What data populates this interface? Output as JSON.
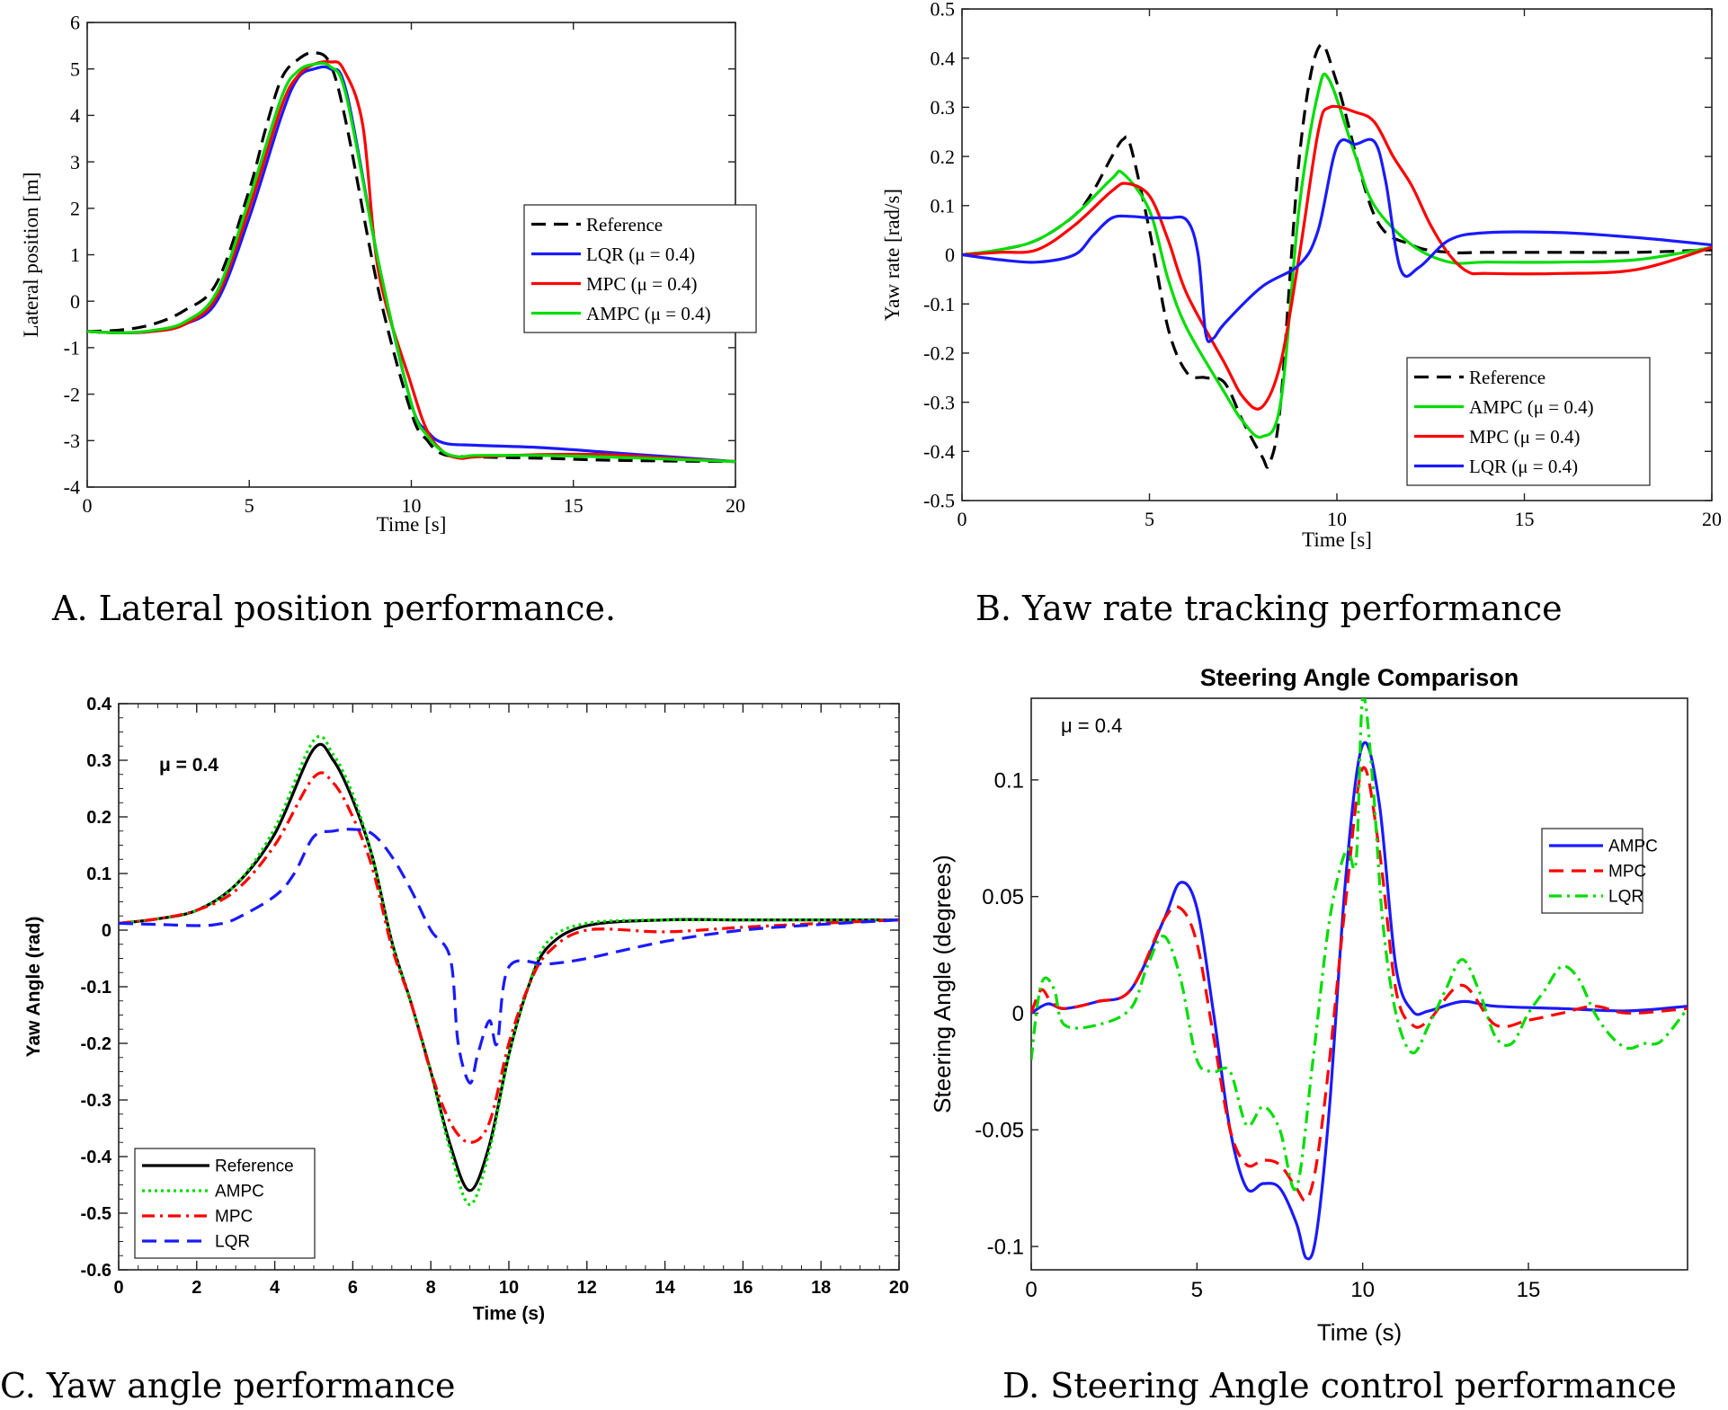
{
  "captions": {
    "a": "A.   Lateral position performance.",
    "b": "B. Yaw rate tracking performance",
    "c": "C. Yaw angle performance",
    "d": "D. Steering Angle control performance"
  },
  "colors": {
    "reference": "#000000",
    "lqr": "#1a1aff",
    "mpc": "#ff0000",
    "ampc": "#00dd00"
  },
  "chart_data": [
    {
      "type": "line",
      "title": "",
      "xlabel": "Time [s]",
      "ylabel": "Lateral position [m]",
      "xlim": [
        0,
        20
      ],
      "ylim": [
        -4,
        6
      ],
      "xticks": [
        0,
        5,
        10,
        15,
        20
      ],
      "yticks": [
        -4,
        -3,
        -2,
        -1,
        0,
        1,
        2,
        3,
        4,
        5,
        6
      ],
      "grid": false,
      "legend_position": "center-right",
      "series": [
        {
          "name": "Reference",
          "color": "#000000",
          "dash": "dashed",
          "x": [
            0,
            1,
            2,
            3,
            4,
            5,
            5.5,
            6,
            6.5,
            7,
            7.5,
            8,
            9,
            10,
            10.5,
            11,
            12,
            14,
            16,
            18,
            20
          ],
          "y": [
            -0.65,
            -0.62,
            -0.5,
            -0.2,
            0.4,
            2.4,
            3.7,
            4.8,
            5.2,
            5.35,
            5.1,
            3.8,
            0.2,
            -2.4,
            -3.0,
            -3.3,
            -3.35,
            -3.38,
            -3.42,
            -3.44,
            -3.45
          ]
        },
        {
          "name": "LQR (μ = 0.4)",
          "color": "#1a1aff",
          "dash": "solid",
          "x": [
            0,
            1,
            2,
            3,
            4,
            5,
            6,
            6.5,
            7,
            7.5,
            8,
            9,
            10,
            10.5,
            11,
            12,
            14,
            16,
            18,
            20
          ],
          "y": [
            -0.65,
            -0.68,
            -0.65,
            -0.5,
            0.0,
            1.8,
            4.0,
            4.8,
            5.0,
            5.0,
            4.5,
            0.8,
            -2.2,
            -2.8,
            -3.05,
            -3.1,
            -3.15,
            -3.25,
            -3.35,
            -3.45
          ]
        },
        {
          "name": "MPC (μ = 0.4)",
          "color": "#ff0000",
          "dash": "solid",
          "x": [
            0,
            1,
            2,
            3,
            4,
            5,
            6,
            6.5,
            7,
            7.5,
            7.9,
            8.5,
            9,
            10,
            10.5,
            11,
            11.5,
            12,
            14,
            16,
            18,
            20
          ],
          "y": [
            -0.65,
            -0.68,
            -0.65,
            -0.5,
            0.1,
            2.0,
            4.2,
            4.85,
            5.1,
            5.15,
            5.0,
            3.8,
            0.6,
            -1.8,
            -2.8,
            -3.25,
            -3.38,
            -3.35,
            -3.3,
            -3.3,
            -3.38,
            -3.45
          ]
        },
        {
          "name": "AMPC (μ = 0.4)",
          "color": "#00dd00",
          "dash": "solid",
          "x": [
            0,
            1,
            2,
            3,
            4,
            5,
            6,
            6.5,
            7,
            7.5,
            8,
            9,
            10,
            10.5,
            11,
            11.5,
            12,
            14,
            16,
            18,
            20
          ],
          "y": [
            -0.65,
            -0.68,
            -0.63,
            -0.45,
            0.2,
            2.2,
            4.4,
            4.95,
            5.1,
            5.05,
            4.4,
            0.8,
            -2.2,
            -2.9,
            -3.25,
            -3.35,
            -3.32,
            -3.32,
            -3.35,
            -3.4,
            -3.45
          ]
        }
      ]
    },
    {
      "type": "line",
      "title": "",
      "xlabel": "Time [s]",
      "ylabel": "Yaw rate [rad/s]",
      "xlim": [
        0,
        20
      ],
      "ylim": [
        -0.5,
        0.5
      ],
      "xticks": [
        0,
        5,
        10,
        15,
        20
      ],
      "yticks": [
        -0.5,
        -0.4,
        -0.3,
        -0.2,
        -0.1,
        0,
        0.1,
        0.2,
        0.3,
        0.4,
        0.5
      ],
      "grid": false,
      "legend_position": "bottom-right",
      "series": [
        {
          "name": "Reference",
          "color": "#000000",
          "dash": "dashed",
          "x": [
            0,
            1,
            2,
            3,
            3.5,
            4,
            4.3,
            4.5,
            5,
            5.5,
            6,
            6.5,
            7,
            7.5,
            8,
            8.2,
            8.5,
            9,
            9.5,
            10,
            11,
            12,
            13,
            14,
            16,
            18,
            20
          ],
          "y": [
            0,
            0.01,
            0.03,
            0.08,
            0.13,
            0.2,
            0.235,
            0.22,
            0.05,
            -0.15,
            -0.24,
            -0.25,
            -0.26,
            -0.34,
            -0.41,
            -0.425,
            -0.3,
            0.2,
            0.42,
            0.35,
            0.08,
            0.02,
            0.005,
            0.005,
            0.005,
            0.005,
            0.01
          ]
        },
        {
          "name": "AMPC (μ = 0.4)",
          "color": "#00dd00",
          "dash": "solid",
          "x": [
            0,
            1,
            2,
            3,
            4,
            4.3,
            5,
            5.5,
            6,
            7,
            7.5,
            8,
            8.5,
            9,
            9.5,
            9.8,
            10.5,
            11,
            12,
            13,
            14,
            16,
            18,
            20
          ],
          "y": [
            0,
            0.01,
            0.03,
            0.08,
            0.155,
            0.165,
            0.09,
            -0.05,
            -0.15,
            -0.28,
            -0.34,
            -0.37,
            -0.3,
            0.1,
            0.33,
            0.355,
            0.2,
            0.1,
            0.02,
            -0.015,
            -0.015,
            -0.015,
            -0.01,
            0.015
          ]
        },
        {
          "name": "MPC (μ = 0.4)",
          "color": "#ff0000",
          "dash": "solid",
          "x": [
            0,
            1,
            2,
            3,
            4,
            4.4,
            5,
            5.5,
            6,
            7,
            7.5,
            8,
            8.5,
            9,
            9.5,
            9.8,
            10.5,
            11,
            11.5,
            12,
            12.5,
            13,
            13.5,
            14,
            16,
            18,
            20
          ],
          "y": [
            0,
            0.005,
            0.01,
            0.06,
            0.13,
            0.145,
            0.12,
            0.03,
            -0.08,
            -0.22,
            -0.29,
            -0.31,
            -0.22,
            0.0,
            0.25,
            0.3,
            0.29,
            0.27,
            0.2,
            0.14,
            0.06,
            0.0,
            -0.035,
            -0.038,
            -0.038,
            -0.03,
            0.015
          ]
        },
        {
          "name": "LQR (μ = 0.4)",
          "color": "#1a1aff",
          "dash": "solid",
          "x": [
            0,
            1,
            2,
            3,
            3.5,
            4,
            4.5,
            5,
            5.5,
            6,
            6.3,
            6.5,
            6.7,
            7,
            8,
            9,
            9.5,
            10,
            10.5,
            11,
            11.3,
            11.7,
            12.2,
            13,
            14,
            16,
            18,
            20
          ],
          "y": [
            0,
            -0.01,
            -0.015,
            0.0,
            0.04,
            0.075,
            0.078,
            0.075,
            0.075,
            0.07,
            0.0,
            -0.16,
            -0.17,
            -0.14,
            -0.065,
            -0.02,
            0.05,
            0.22,
            0.225,
            0.23,
            0.15,
            -0.03,
            -0.025,
            0.03,
            0.045,
            0.045,
            0.035,
            0.02
          ]
        }
      ]
    },
    {
      "type": "line",
      "title": "",
      "xlabel": "Time (s)",
      "ylabel": "Yaw Angle (rad)",
      "annotation": "μ = 0.4",
      "xlim": [
        0,
        20
      ],
      "ylim": [
        -0.6,
        0.4
      ],
      "xticks": [
        0,
        2,
        4,
        6,
        8,
        10,
        12,
        14,
        16,
        18,
        20
      ],
      "yticks": [
        -0.6,
        -0.5,
        -0.4,
        -0.3,
        -0.2,
        -0.1,
        0,
        0.1,
        0.2,
        0.3,
        0.4
      ],
      "grid": false,
      "legend_position": "bottom-left",
      "series": [
        {
          "name": "Reference",
          "color": "#000000",
          "dash": "solid",
          "x": [
            0,
            1,
            2,
            3,
            4,
            5,
            5.5,
            6,
            6.5,
            7,
            7.5,
            8,
            8.5,
            9,
            9.5,
            10,
            10.5,
            11,
            12,
            14,
            16,
            18,
            20
          ],
          "y": [
            0.012,
            0.02,
            0.035,
            0.08,
            0.17,
            0.32,
            0.3,
            0.23,
            0.13,
            -0.02,
            -0.13,
            -0.25,
            -0.38,
            -0.46,
            -0.38,
            -0.22,
            -0.1,
            -0.03,
            0.008,
            0.018,
            0.018,
            0.018,
            0.018
          ]
        },
        {
          "name": "AMPC",
          "color": "#00dd00",
          "dash": "dotted",
          "x": [
            0,
            1,
            2,
            3,
            4,
            5,
            5.5,
            6,
            6.5,
            7,
            7.5,
            8,
            8.5,
            9,
            9.5,
            10,
            10.5,
            11,
            12,
            14,
            16,
            18,
            20
          ],
          "y": [
            0.012,
            0.02,
            0.035,
            0.08,
            0.18,
            0.335,
            0.31,
            0.24,
            0.13,
            -0.02,
            -0.13,
            -0.25,
            -0.39,
            -0.485,
            -0.39,
            -0.22,
            -0.1,
            -0.02,
            0.012,
            0.018,
            0.018,
            0.018,
            0.018
          ]
        },
        {
          "name": "MPC",
          "color": "#ff0000",
          "dash": "dashdot",
          "x": [
            0,
            1,
            2,
            3,
            4,
            5,
            5.5,
            6,
            6.5,
            7,
            7.5,
            8,
            8.5,
            9,
            9.5,
            10,
            10.5,
            11,
            12,
            14,
            16,
            18,
            20
          ],
          "y": [
            0.012,
            0.02,
            0.035,
            0.07,
            0.15,
            0.27,
            0.26,
            0.2,
            0.11,
            -0.03,
            -0.13,
            -0.25,
            -0.34,
            -0.375,
            -0.34,
            -0.2,
            -0.1,
            -0.04,
            0.0,
            -0.003,
            0.005,
            0.012,
            0.018
          ]
        },
        {
          "name": "LQR",
          "color": "#1a1aff",
          "dash": "dashed",
          "x": [
            0,
            1,
            2,
            2.5,
            3,
            4,
            4.5,
            5,
            5.5,
            6,
            6.5,
            7,
            7.5,
            8,
            8.5,
            8.7,
            9.0,
            9.2,
            9.5,
            9.7,
            10.0,
            11,
            12,
            14,
            16,
            18,
            20
          ],
          "y": [
            0.012,
            0.01,
            0.008,
            0.01,
            0.02,
            0.06,
            0.1,
            0.165,
            0.175,
            0.178,
            0.17,
            0.13,
            0.07,
            0.0,
            -0.05,
            -0.2,
            -0.27,
            -0.22,
            -0.16,
            -0.2,
            -0.065,
            -0.06,
            -0.05,
            -0.02,
            0.0,
            0.01,
            0.018
          ]
        }
      ]
    },
    {
      "type": "line",
      "title": "Steering Angle Comparison",
      "xlabel": "Time (s)",
      "ylabel": "Steering Angle (degrees)",
      "annotation": "μ = 0.4",
      "xlim": [
        0,
        19.8
      ],
      "ylim": [
        -0.11,
        0.135
      ],
      "xticks": [
        0,
        5,
        10,
        15
      ],
      "yticks": [
        -0.1,
        -0.05,
        0,
        0.05,
        0.1
      ],
      "grid": false,
      "legend_position": "right",
      "series": [
        {
          "name": "AMPC",
          "color": "#1a1aff",
          "dash": "solid",
          "x": [
            0,
            0.5,
            1,
            2,
            3,
            4,
            4.5,
            5,
            5.5,
            6,
            6.5,
            7,
            7.5,
            8,
            8.3,
            8.6,
            9,
            9.5,
            10,
            10.5,
            11,
            11.5,
            12,
            13,
            14,
            16,
            18,
            19.8
          ],
          "y": [
            0.0,
            0.004,
            0.002,
            0.005,
            0.01,
            0.04,
            0.056,
            0.045,
            0.0,
            -0.05,
            -0.075,
            -0.073,
            -0.075,
            -0.09,
            -0.105,
            -0.095,
            -0.04,
            0.06,
            0.115,
            0.09,
            0.02,
            0.001,
            0.001,
            0.005,
            0.003,
            0.002,
            0.001,
            0.003
          ]
        },
        {
          "name": "MPC",
          "color": "#ff0000",
          "dash": "dashed",
          "x": [
            0,
            0.3,
            0.6,
            1,
            2,
            3,
            4,
            4.5,
            5,
            5.5,
            6,
            6.5,
            7,
            7.5,
            8,
            8.3,
            8.6,
            9,
            9.5,
            10,
            10.5,
            11,
            11.5,
            12,
            13,
            14,
            15,
            16,
            17,
            18,
            19.8
          ],
          "y": [
            0.0,
            0.01,
            0.005,
            0.002,
            0.005,
            0.01,
            0.04,
            0.045,
            0.03,
            -0.01,
            -0.05,
            -0.065,
            -0.063,
            -0.065,
            -0.075,
            -0.08,
            -0.065,
            -0.02,
            0.05,
            0.105,
            0.07,
            0.01,
            -0.005,
            -0.003,
            0.012,
            -0.005,
            -0.003,
            0.0,
            0.003,
            0.0,
            0.002
          ]
        },
        {
          "name": "LQR",
          "color": "#00dd00",
          "dash": "dashdot",
          "x": [
            0,
            0.2,
            0.4,
            0.7,
            1,
            2,
            3,
            3.5,
            4,
            4.5,
            5,
            5.5,
            6,
            6.5,
            7,
            7.5,
            8,
            8.5,
            9,
            9.5,
            9.8,
            10.0,
            10.3,
            10.6,
            11,
            11.5,
            12,
            12.5,
            13,
            13.5,
            14,
            14.5,
            15,
            15.5,
            16,
            16.5,
            17,
            17.5,
            18,
            18.5,
            19,
            19.8
          ],
          "y": [
            -0.02,
            0.005,
            0.015,
            0.01,
            -0.005,
            -0.005,
            0.002,
            0.02,
            0.033,
            0.015,
            -0.02,
            -0.025,
            -0.025,
            -0.048,
            -0.04,
            -0.05,
            -0.075,
            -0.02,
            0.04,
            0.07,
            0.065,
            0.135,
            0.1,
            0.04,
            0.0,
            -0.017,
            -0.005,
            0.01,
            0.023,
            0.01,
            -0.01,
            -0.013,
            0.0,
            0.01,
            0.02,
            0.015,
            0.0,
            -0.01,
            -0.015,
            -0.013,
            -0.012,
            0.002
          ]
        }
      ]
    }
  ]
}
